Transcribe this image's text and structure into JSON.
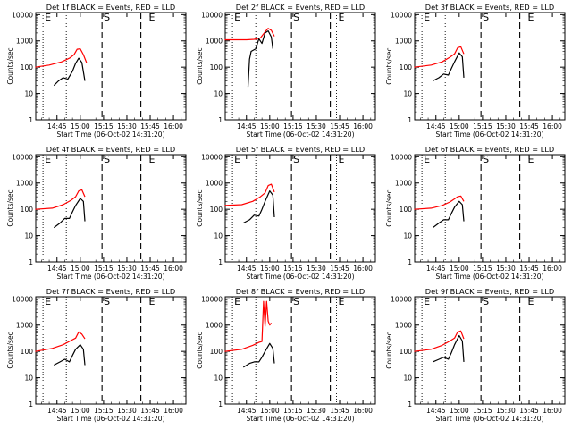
{
  "figure": {
    "xlabel": "Start Time (06-Oct-02 14:31:20)",
    "ylabel": "Counts/sec"
  },
  "chart_data": [
    {
      "type": "line",
      "title": "Det 1f BLACK = Events, RED = LLD",
      "xlabel": "Start Time (06-Oct-02 14:31:20)",
      "ylabel": "Counts/sec",
      "x_ticks": [
        "14:45",
        "15:00",
        "15:15",
        "15:30",
        "15:45",
        "16:00"
      ],
      "y_ticks": [
        "1",
        "10",
        "100",
        "1000",
        "10000"
      ],
      "y_scale": "log",
      "xlim": [
        "14:31:20",
        "16:08"
      ],
      "ylim": [
        1,
        12000
      ],
      "markers": [
        {
          "label": "E",
          "time": "14:36",
          "style": "dotted"
        },
        {
          "label": "",
          "time": "14:51",
          "style": "dotted"
        },
        {
          "label": "S",
          "time": "15:14",
          "style": "dashed"
        },
        {
          "label": "",
          "time": "15:39",
          "style": "dashed"
        },
        {
          "label": "E",
          "time": "15:43",
          "style": "dotted"
        }
      ],
      "series": [
        {
          "color": "#ff0000",
          "x": [
            "14:31",
            "14:40",
            "14:48",
            "14:53",
            "14:56",
            "14:58",
            "15:00",
            "15:02",
            "15:04"
          ],
          "y": [
            100,
            120,
            160,
            220,
            300,
            480,
            500,
            300,
            150
          ]
        },
        {
          "color": "#000000",
          "x": [
            "14:43",
            "14:46",
            "14:49",
            "14:52",
            "14:55",
            "14:57",
            "14:59",
            "15:01",
            "15:03"
          ],
          "y": [
            20,
            30,
            40,
            35,
            70,
            140,
            220,
            150,
            30
          ]
        }
      ]
    },
    {
      "type": "line",
      "title": "Det 2f BLACK = Events, RED = LLD",
      "xlabel": "Start Time (06-Oct-02 14:31:20)",
      "ylabel": "Counts/sec",
      "x_ticks": [
        "14:45",
        "15:00",
        "15:15",
        "15:30",
        "15:45",
        "16:00"
      ],
      "y_ticks": [
        "1",
        "10",
        "100",
        "1000",
        "10000"
      ],
      "y_scale": "log",
      "xlim": [
        "14:31:20",
        "16:08"
      ],
      "ylim": [
        1,
        12000
      ],
      "markers": [
        {
          "label": "E",
          "time": "14:36",
          "style": "dotted"
        },
        {
          "label": "",
          "time": "14:51",
          "style": "dotted"
        },
        {
          "label": "S",
          "time": "15:14",
          "style": "dashed"
        },
        {
          "label": "",
          "time": "15:39",
          "style": "dashed"
        },
        {
          "label": "E",
          "time": "15:43",
          "style": "dotted"
        }
      ],
      "series": [
        {
          "color": "#ff0000",
          "x": [
            "14:31",
            "14:45",
            "14:50",
            "14:54",
            "14:57",
            "14:59",
            "15:01",
            "15:03"
          ],
          "y": [
            1100,
            1100,
            1150,
            1300,
            2200,
            3000,
            2500,
            1500
          ]
        },
        {
          "color": "#000000",
          "x": [
            "14:46",
            "14:47",
            "14:48",
            "14:51",
            "14:53",
            "14:55",
            "14:57",
            "14:59",
            "15:01",
            "15:02"
          ],
          "y": [
            18,
            200,
            400,
            500,
            1200,
            800,
            2000,
            2400,
            1400,
            500
          ]
        }
      ]
    },
    {
      "type": "line",
      "title": "Det 3f BLACK = Events, RED = LLD",
      "xlabel": "Start Time (06-Oct-02 14:31:20)",
      "ylabel": "Counts/sec",
      "x_ticks": [
        "14:45",
        "15:00",
        "15:15",
        "15:30",
        "15:45",
        "16:00"
      ],
      "y_ticks": [
        "1",
        "10",
        "100",
        "1000",
        "10000"
      ],
      "y_scale": "log",
      "xlim": [
        "14:31:20",
        "16:08"
      ],
      "ylim": [
        1,
        12000
      ],
      "markers": [
        {
          "label": "E",
          "time": "14:36",
          "style": "dotted"
        },
        {
          "label": "",
          "time": "14:51",
          "style": "dotted"
        },
        {
          "label": "S",
          "time": "15:14",
          "style": "dashed"
        },
        {
          "label": "",
          "time": "15:39",
          "style": "dashed"
        },
        {
          "label": "E",
          "time": "15:43",
          "style": "dotted"
        }
      ],
      "series": [
        {
          "color": "#ff0000",
          "x": [
            "14:31",
            "14:42",
            "14:49",
            "14:54",
            "14:57",
            "14:59",
            "15:01",
            "15:03"
          ],
          "y": [
            100,
            120,
            160,
            240,
            320,
            550,
            600,
            320
          ]
        },
        {
          "color": "#000000",
          "x": [
            "14:43",
            "14:47",
            "14:50",
            "14:53",
            "14:55",
            "14:57",
            "15:00",
            "15:02",
            "15:03"
          ],
          "y": [
            30,
            40,
            55,
            50,
            90,
            160,
            350,
            250,
            40
          ]
        }
      ]
    },
    {
      "type": "line",
      "title": "Det 4f BLACK = Events, RED = LLD",
      "xlabel": "Start Time (06-Oct-02 14:31:20)",
      "ylabel": "Counts/sec",
      "x_ticks": [
        "14:45",
        "15:00",
        "15:15",
        "15:30",
        "15:45",
        "16:00"
      ],
      "y_ticks": [
        "1",
        "10",
        "100",
        "1000",
        "10000"
      ],
      "y_scale": "log",
      "xlim": [
        "14:31:20",
        "16:08"
      ],
      "ylim": [
        1,
        12000
      ],
      "markers": [
        {
          "label": "E",
          "time": "14:36",
          "style": "dotted"
        },
        {
          "label": "",
          "time": "14:51",
          "style": "dotted"
        },
        {
          "label": "S",
          "time": "15:14",
          "style": "dashed"
        },
        {
          "label": "",
          "time": "15:39",
          "style": "dashed"
        },
        {
          "label": "E",
          "time": "15:43",
          "style": "dotted"
        }
      ],
      "series": [
        {
          "color": "#ff0000",
          "x": [
            "14:31",
            "14:42",
            "14:49",
            "14:54",
            "14:57",
            "14:59",
            "15:01",
            "15:03"
          ],
          "y": [
            100,
            110,
            150,
            220,
            300,
            500,
            550,
            300
          ]
        },
        {
          "color": "#000000",
          "x": [
            "14:43",
            "14:47",
            "14:50",
            "14:53",
            "14:55",
            "14:57",
            "15:00",
            "15:02",
            "15:03"
          ],
          "y": [
            20,
            30,
            45,
            45,
            80,
            140,
            260,
            200,
            35
          ]
        }
      ]
    },
    {
      "type": "line",
      "title": "Det 5f BLACK = Events, RED = LLD",
      "xlabel": "Start Time (06-Oct-02 14:31:20)",
      "ylabel": "Counts/sec",
      "x_ticks": [
        "14:45",
        "15:00",
        "15:15",
        "15:30",
        "15:45",
        "16:00"
      ],
      "y_ticks": [
        "1",
        "10",
        "100",
        "1000",
        "10000"
      ],
      "y_scale": "log",
      "xlim": [
        "14:31:20",
        "16:08"
      ],
      "ylim": [
        1,
        12000
      ],
      "markers": [
        {
          "label": "E",
          "time": "14:36",
          "style": "dotted"
        },
        {
          "label": "",
          "time": "14:51",
          "style": "dotted"
        },
        {
          "label": "S",
          "time": "15:14",
          "style": "dashed"
        },
        {
          "label": "",
          "time": "15:39",
          "style": "dashed"
        },
        {
          "label": "E",
          "time": "15:43",
          "style": "dotted"
        }
      ],
      "series": [
        {
          "color": "#ff0000",
          "x": [
            "14:31",
            "14:42",
            "14:49",
            "14:54",
            "14:57",
            "14:59",
            "15:01",
            "15:03"
          ],
          "y": [
            140,
            150,
            200,
            300,
            420,
            800,
            900,
            450
          ]
        },
        {
          "color": "#000000",
          "x": [
            "14:43",
            "14:47",
            "14:50",
            "14:53",
            "14:55",
            "14:57",
            "15:00",
            "15:02",
            "15:03"
          ],
          "y": [
            30,
            40,
            60,
            55,
            100,
            200,
            500,
            350,
            50
          ]
        }
      ]
    },
    {
      "type": "line",
      "title": "Det 6f BLACK = Events, RED = LLD",
      "xlabel": "Start Time (06-Oct-02 14:31:20)",
      "ylabel": "Counts/sec",
      "x_ticks": [
        "14:45",
        "15:00",
        "15:15",
        "15:30",
        "15:45",
        "16:00"
      ],
      "y_ticks": [
        "1",
        "10",
        "100",
        "1000",
        "10000"
      ],
      "y_scale": "log",
      "xlim": [
        "14:31:20",
        "16:08"
      ],
      "ylim": [
        1,
        12000
      ],
      "markers": [
        {
          "label": "E",
          "time": "14:36",
          "style": "dotted"
        },
        {
          "label": "",
          "time": "14:51",
          "style": "dotted"
        },
        {
          "label": "S",
          "time": "15:14",
          "style": "dashed"
        },
        {
          "label": "",
          "time": "15:39",
          "style": "dashed"
        },
        {
          "label": "E",
          "time": "15:43",
          "style": "dotted"
        }
      ],
      "series": [
        {
          "color": "#ff0000",
          "x": [
            "14:31",
            "14:42",
            "14:49",
            "14:54",
            "14:57",
            "14:59",
            "15:01",
            "15:03"
          ],
          "y": [
            100,
            110,
            140,
            190,
            250,
            300,
            320,
            200
          ]
        },
        {
          "color": "#000000",
          "x": [
            "14:43",
            "14:47",
            "14:50",
            "14:53",
            "14:55",
            "14:57",
            "15:00",
            "15:02",
            "15:03"
          ],
          "y": [
            20,
            30,
            40,
            40,
            70,
            120,
            200,
            150,
            35
          ]
        }
      ]
    },
    {
      "type": "line",
      "title": "Det 7f BLACK = Events, RED = LLD",
      "xlabel": "Start Time (06-Oct-02 14:31:20)",
      "ylabel": "Counts/sec",
      "x_ticks": [
        "14:45",
        "15:00",
        "15:15",
        "15:30",
        "15:45",
        "16:00"
      ],
      "y_ticks": [
        "1",
        "10",
        "100",
        "1000",
        "10000"
      ],
      "y_scale": "log",
      "xlim": [
        "14:31:20",
        "16:08"
      ],
      "ylim": [
        1,
        12000
      ],
      "markers": [
        {
          "label": "E",
          "time": "14:36",
          "style": "dotted"
        },
        {
          "label": "",
          "time": "14:51",
          "style": "dotted"
        },
        {
          "label": "S",
          "time": "15:14",
          "style": "dashed"
        },
        {
          "label": "",
          "time": "15:39",
          "style": "dashed"
        },
        {
          "label": "E",
          "time": "15:43",
          "style": "dotted"
        }
      ],
      "series": [
        {
          "color": "#ff0000",
          "x": [
            "14:31",
            "14:42",
            "14:49",
            "14:54",
            "14:57",
            "14:59",
            "15:01",
            "15:03"
          ],
          "y": [
            100,
            130,
            180,
            260,
            320,
            550,
            450,
            300
          ]
        },
        {
          "color": "#000000",
          "x": [
            "14:43",
            "14:47",
            "14:50",
            "14:53",
            "14:55",
            "14:57",
            "15:00",
            "15:02",
            "15:03"
          ],
          "y": [
            30,
            40,
            50,
            40,
            70,
            120,
            180,
            120,
            30
          ]
        }
      ]
    },
    {
      "type": "line",
      "title": "Det 8f BLACK = Events, RED = LLD",
      "xlabel": "Start Time (06-Oct-02 14:31:20)",
      "ylabel": "Counts/sec",
      "x_ticks": [
        "14:45",
        "15:00",
        "15:15",
        "15:30",
        "15:45",
        "16:00"
      ],
      "y_ticks": [
        "1",
        "10",
        "100",
        "1000",
        "10000"
      ],
      "y_scale": "log",
      "xlim": [
        "14:31:20",
        "16:08"
      ],
      "ylim": [
        1,
        12000
      ],
      "markers": [
        {
          "label": "E",
          "time": "14:36",
          "style": "dotted"
        },
        {
          "label": "",
          "time": "14:51",
          "style": "dotted"
        },
        {
          "label": "S",
          "time": "15:14",
          "style": "dashed"
        },
        {
          "label": "",
          "time": "15:39",
          "style": "dashed"
        },
        {
          "label": "E",
          "time": "15:43",
          "style": "dotted"
        }
      ],
      "series": [
        {
          "color": "#ff0000",
          "x": [
            "14:31",
            "14:42",
            "14:49",
            "14:53",
            "14:55",
            "14:56",
            "14:57",
            "14:58",
            "14:59",
            "15:00",
            "15:01"
          ],
          "y": [
            100,
            120,
            170,
            220,
            240,
            8000,
            900,
            8000,
            1400,
            1000,
            1200
          ]
        },
        {
          "color": "#000000",
          "x": [
            "14:43",
            "14:47",
            "14:50",
            "14:53",
            "14:55",
            "14:57",
            "15:00",
            "15:02",
            "15:03"
          ],
          "y": [
            25,
            35,
            40,
            40,
            60,
            100,
            200,
            130,
            35
          ]
        }
      ]
    },
    {
      "type": "line",
      "title": "Det 9f BLACK = Events, RED = LLD",
      "xlabel": "Start Time (06-Oct-02 14:31:20)",
      "ylabel": "Counts/sec",
      "x_ticks": [
        "14:45",
        "15:00",
        "15:15",
        "15:30",
        "15:45",
        "16:00"
      ],
      "y_ticks": [
        "1",
        "10",
        "100",
        "1000",
        "10000"
      ],
      "y_scale": "log",
      "xlim": [
        "14:31:20",
        "16:08"
      ],
      "ylim": [
        1,
        12000
      ],
      "markers": [
        {
          "label": "E",
          "time": "14:36",
          "style": "dotted"
        },
        {
          "label": "",
          "time": "14:51",
          "style": "dotted"
        },
        {
          "label": "S",
          "time": "15:14",
          "style": "dashed"
        },
        {
          "label": "",
          "time": "15:39",
          "style": "dashed"
        },
        {
          "label": "E",
          "time": "15:43",
          "style": "dotted"
        }
      ],
      "series": [
        {
          "color": "#ff0000",
          "x": [
            "14:31",
            "14:42",
            "14:49",
            "14:54",
            "14:57",
            "14:59",
            "15:01",
            "15:03"
          ],
          "y": [
            100,
            120,
            170,
            250,
            320,
            550,
            600,
            300
          ]
        },
        {
          "color": "#000000",
          "x": [
            "14:43",
            "14:47",
            "14:50",
            "14:53",
            "14:55",
            "14:57",
            "15:00",
            "15:02",
            "15:03"
          ],
          "y": [
            40,
            50,
            60,
            50,
            90,
            180,
            400,
            250,
            40
          ]
        }
      ]
    }
  ]
}
